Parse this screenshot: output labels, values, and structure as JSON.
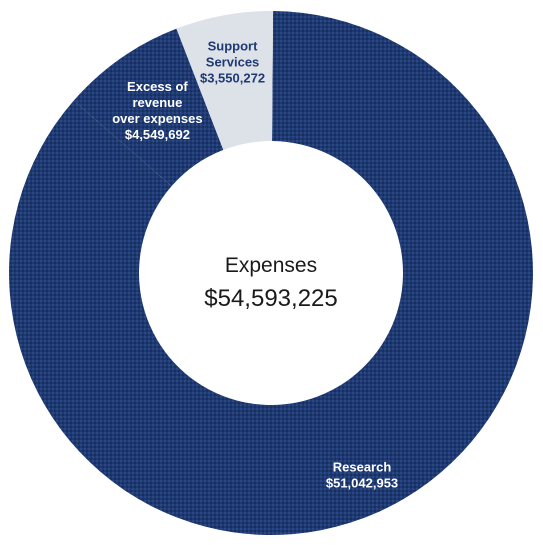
{
  "chart_data": {
    "type": "pie",
    "center": {
      "title": "Expenses",
      "total": "$54,593,225"
    },
    "slices": [
      {
        "name": "Research",
        "value": 51042953,
        "label_lines": [
          "Research",
          "$51,042,953"
        ],
        "color": "#1f3a73",
        "label_color": "#ffffff"
      },
      {
        "name": "Excess of revenue over expenses",
        "value": 4549692,
        "label_lines": [
          "Excess of",
          "revenue",
          "over expenses",
          "$4,549,692"
        ],
        "color": "#1f3a73",
        "label_color": "#ffffff"
      },
      {
        "name": "Support Services",
        "value": 3550272,
        "label_lines": [
          "Support",
          "Services",
          "$3,550,272"
        ],
        "color": "#dde1e8",
        "label_color": "#1f3a73"
      }
    ]
  }
}
